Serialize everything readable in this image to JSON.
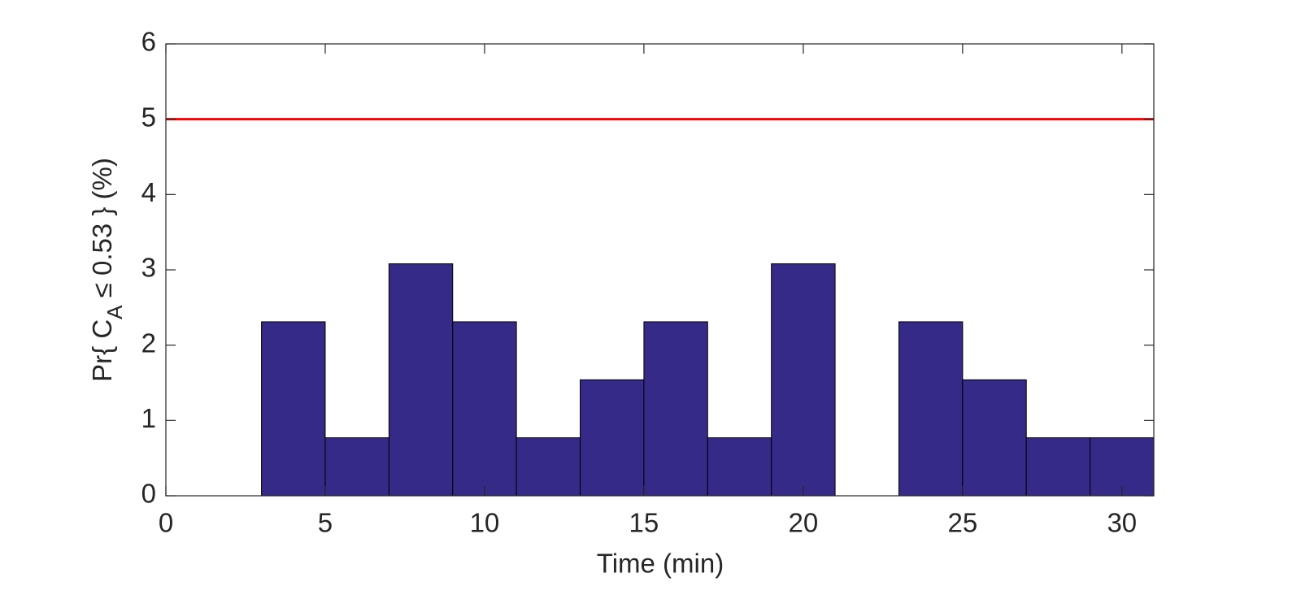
{
  "chart_data": {
    "type": "histogram",
    "xlabel": "Time (min)",
    "ylabel": {
      "prefix": "Pr{ C",
      "subscript": "A",
      "suffix": " ≤ 0.53 } (%)"
    },
    "bins": [
      1,
      3,
      5,
      7,
      9,
      11,
      13,
      15,
      17,
      19,
      21,
      23,
      25,
      27,
      29,
      31
    ],
    "counts": [
      0,
      2.31,
      0.77,
      3.08,
      2.31,
      0.77,
      1.54,
      2.31,
      0.77,
      3.08,
      0,
      2.31,
      1.54,
      0.77,
      0.77
    ],
    "color": "#352a87",
    "threshold": {
      "value": 5,
      "color": "#ff0000"
    },
    "xlim": [
      0,
      31
    ],
    "xticks": [
      0,
      5,
      10,
      15,
      20,
      25,
      30
    ],
    "ylim": [
      0,
      6
    ],
    "yticks": [
      0,
      1,
      2,
      3,
      4,
      5,
      6
    ]
  }
}
